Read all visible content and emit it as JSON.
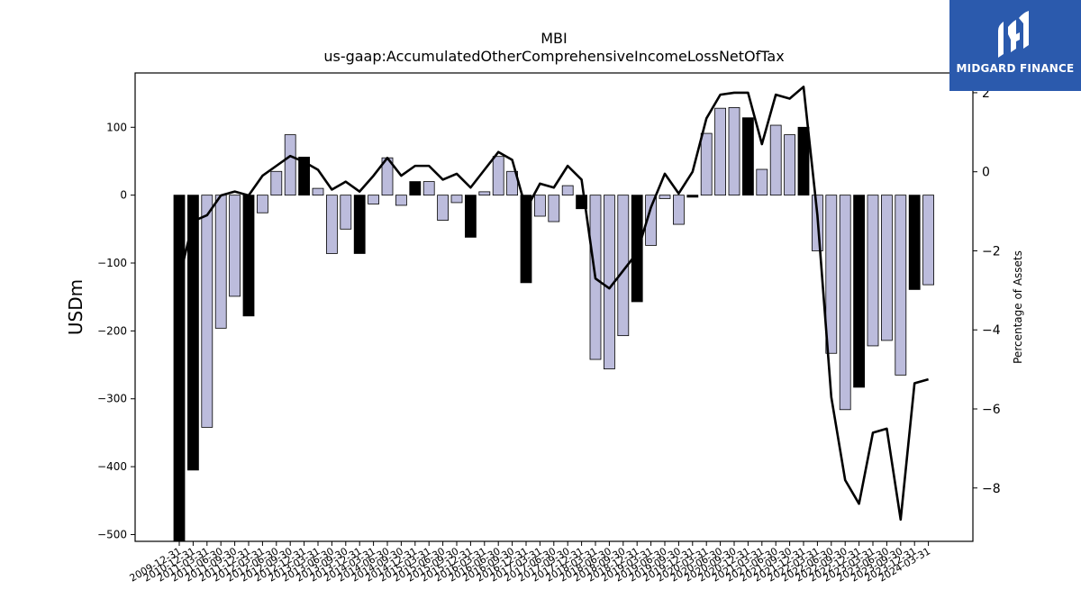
{
  "logo": {
    "text": "MIDGARD FINANCE",
    "icon": "midgard-logo-icon",
    "background": "#2b5aad"
  },
  "chart_data": {
    "type": "bar",
    "title": "MBI",
    "subtitle": "us-gaap:AccumulatedOtherComprehensiveIncomeLossNetOfTax",
    "ylabel": "USDm",
    "y2label": "Percentage of Assets",
    "ylim": [
      -510,
      180
    ],
    "y2lim": [
      -9.35,
      2.5
    ],
    "yticks": [
      100,
      0,
      -100,
      -200,
      -300,
      -400,
      -500
    ],
    "y2ticks": [
      2,
      0,
      -2,
      -4,
      -6,
      -8
    ],
    "colors": {
      "year_end_bar": "#000000",
      "quarter_bar": "#bcbcdc",
      "line": "#000000"
    },
    "categories": [
      "2009-12-31",
      "2010-12-31",
      "2011-03-31",
      "2011-06-30",
      "2011-09-30",
      "2011-12-31",
      "2012-03-31",
      "2012-06-30",
      "2012-09-30",
      "2012-12-31",
      "2013-03-31",
      "2013-06-30",
      "2013-09-30",
      "2013-12-31",
      "2014-03-31",
      "2014-06-30",
      "2014-09-30",
      "2014-12-31",
      "2015-03-31",
      "2015-06-30",
      "2015-09-30",
      "2015-12-31",
      "2016-03-31",
      "2016-06-30",
      "2016-09-30",
      "2016-12-31",
      "2017-03-31",
      "2017-06-30",
      "2017-09-30",
      "2017-12-31",
      "2018-03-31",
      "2018-06-30",
      "2018-09-30",
      "2018-12-31",
      "2019-03-31",
      "2019-06-30",
      "2019-09-30",
      "2019-12-31",
      "2020-03-31",
      "2020-06-30",
      "2020-09-30",
      "2020-12-31",
      "2021-03-31",
      "2021-06-30",
      "2021-09-30",
      "2021-12-31",
      "2022-03-31",
      "2022-06-30",
      "2022-09-30",
      "2022-12-31",
      "2023-03-31",
      "2023-06-30",
      "2023-09-30",
      "2023-12-31",
      "2024-03-31"
    ],
    "series": [
      {
        "kind": "bar",
        "values": [
          -510,
          -405,
          -342,
          -196,
          -149,
          -178,
          -26,
          35,
          89,
          56,
          10,
          -86,
          -50,
          -86,
          -13,
          55,
          -15,
          20,
          20,
          -37,
          -11,
          -62,
          5,
          57,
          35,
          -129,
          -31,
          -39,
          14,
          -20,
          -242,
          -256,
          -207,
          -157,
          -74,
          -5,
          -43,
          -3,
          91,
          128,
          129,
          114,
          38,
          103,
          89,
          100,
          -82,
          -233,
          -316,
          -283,
          -222,
          -214,
          -265,
          -139,
          -132
        ],
        "year_end": [
          true,
          true,
          false,
          false,
          false,
          true,
          false,
          false,
          false,
          true,
          false,
          false,
          false,
          true,
          false,
          false,
          false,
          true,
          false,
          false,
          false,
          true,
          false,
          false,
          false,
          true,
          false,
          false,
          false,
          true,
          false,
          false,
          false,
          true,
          false,
          false,
          false,
          true,
          false,
          false,
          false,
          true,
          false,
          false,
          false,
          true,
          false,
          false,
          false,
          true,
          false,
          false,
          false,
          true,
          false
        ]
      },
      {
        "kind": "line",
        "values": [
          -2.7,
          -1.25,
          -1.1,
          -0.6,
          -0.5,
          -0.6,
          -0.1,
          0.15,
          0.4,
          0.25,
          0.05,
          -0.45,
          -0.25,
          -0.5,
          -0.1,
          0.35,
          -0.1,
          0.15,
          0.15,
          -0.2,
          -0.05,
          -0.4,
          0.05,
          0.5,
          0.3,
          -0.95,
          -0.3,
          -0.4,
          0.15,
          -0.2,
          -2.7,
          -2.95,
          -2.5,
          -2.05,
          -0.9,
          -0.05,
          -0.55,
          0.0,
          1.35,
          1.95,
          2.0,
          2.0,
          0.7,
          1.95,
          1.85,
          2.15,
          -1.1,
          -5.7,
          -7.8,
          -8.4,
          -6.6,
          -6.5,
          -8.8,
          -5.35,
          -5.25
        ]
      }
    ]
  }
}
